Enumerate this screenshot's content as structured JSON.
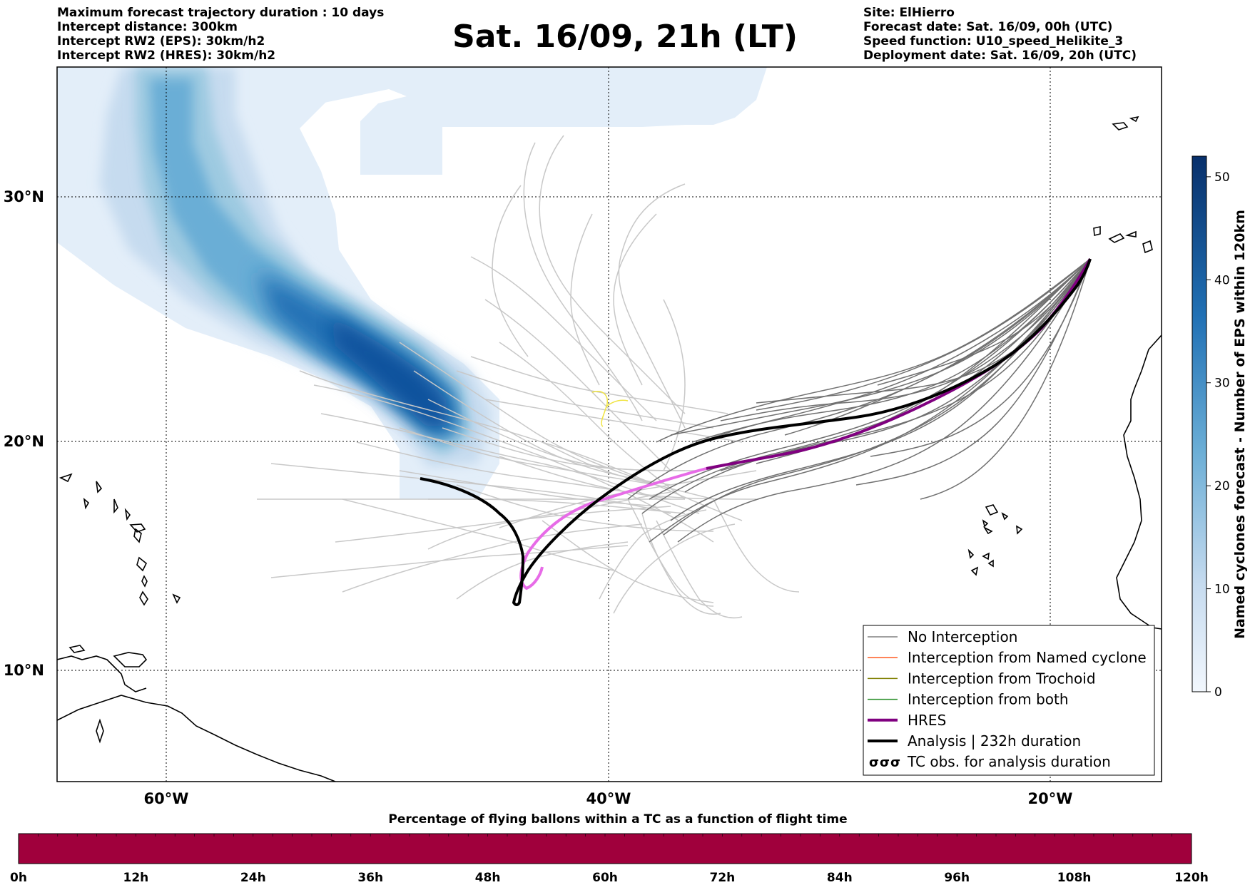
{
  "title": "Sat. 16/09, 21h (LT)",
  "header_left": [
    "Maximum forecast trajectory duration : 10 days",
    "Intercept distance: 300km",
    "Intercept RW2 (EPS):  30km/h2",
    "Intercept RW2 (HRES): 30km/h2"
  ],
  "header_right": [
    "Site: ElHierro",
    "Forecast date: Sat. 16/09, 00h (UTC)",
    "Speed function: U10_speed_Helikite_3",
    "Deployment date: Sat. 16/09, 20h (UTC)"
  ],
  "map": {
    "lat_labels": [
      "30°N",
      "20°N",
      "10°N"
    ],
    "lon_labels": [
      "60°W",
      "40°W",
      "20°W"
    ]
  },
  "legend": {
    "items": [
      {
        "label": "No Interception",
        "color": "#808080",
        "kind": "thin"
      },
      {
        "label": "Interception from Named cyclone",
        "color": "#ff5a1f",
        "kind": "thin"
      },
      {
        "label": "Interception from Trochoid",
        "color": "#808000",
        "kind": "thin"
      },
      {
        "label": "Interception from both",
        "color": "#228b22",
        "kind": "thin"
      },
      {
        "label": "HRES",
        "color": "#800080",
        "kind": "thick"
      },
      {
        "label": "Analysis | 232h duration",
        "color": "#000000",
        "kind": "thick"
      },
      {
        "label": "TC obs. for analysis duration",
        "color": "#000000",
        "kind": "tc"
      }
    ]
  },
  "colorbar": {
    "label": "Named cyclones forecast - Number of EPS within 120km",
    "ticks": [
      "0",
      "10",
      "20",
      "30",
      "40",
      "50"
    ]
  },
  "bottom_bar": {
    "title": "Percentage of flying ballons within a TC as a function of flight time",
    "ticks": [
      "0h",
      "12h",
      "24h",
      "36h",
      "48h",
      "60h",
      "72h",
      "84h",
      "96h",
      "108h",
      "120h"
    ],
    "fill_color": "#a0003c"
  },
  "colors": {
    "eps_track": "#c8c8c8",
    "no_interception": "#707070",
    "hres": "#800080",
    "hres_light": "#e76be7",
    "analysis": "#000000",
    "density_dark": "#08306b",
    "density_light": "#deebf7"
  }
}
